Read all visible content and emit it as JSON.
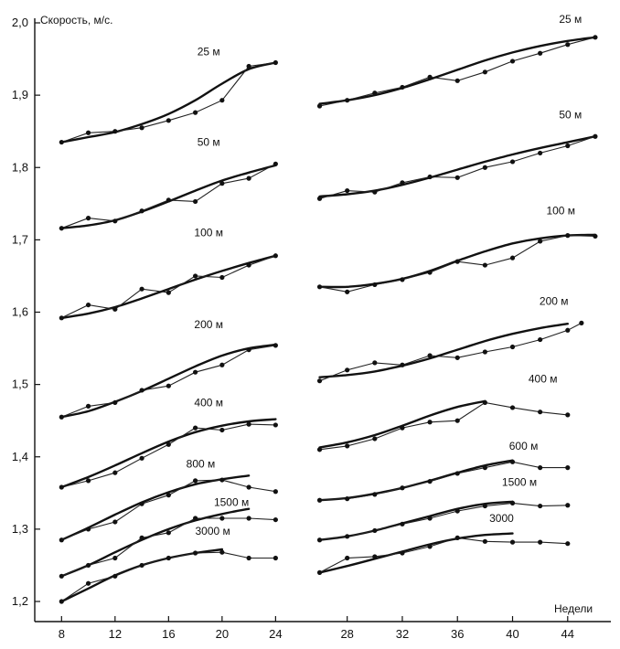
{
  "chart_data": {
    "type": "line",
    "ylabel": "Скорость, м/с.",
    "xlabel": "Недели",
    "ylim": [
      1.2,
      2.0
    ],
    "y_ticks": [
      {
        "value": 1.2,
        "label": "1,2"
      },
      {
        "value": 1.3,
        "label": "1,3"
      },
      {
        "value": 1.4,
        "label": "1,4"
      },
      {
        "value": 1.5,
        "label": "1,5"
      },
      {
        "value": 1.6,
        "label": "1,6"
      },
      {
        "value": 1.7,
        "label": "1,7"
      },
      {
        "value": 1.8,
        "label": "1,8"
      },
      {
        "value": 1.9,
        "label": "1,9"
      },
      {
        "value": 2.0,
        "label": "2,0"
      }
    ],
    "panels": [
      {
        "xlim": [
          7.5,
          25
        ],
        "x_ticks": [
          {
            "value": 8,
            "label": "8"
          },
          {
            "value": 12,
            "label": "12"
          },
          {
            "value": 16,
            "label": "16"
          },
          {
            "value": 20,
            "label": "20"
          },
          {
            "value": 24,
            "label": "24"
          }
        ],
        "series": [
          {
            "name": "25 м",
            "label_at": [
              19,
              1.955
            ],
            "x": [
              8,
              10,
              12,
              14,
              16,
              18,
              20,
              22,
              24
            ],
            "y": [
              1.835,
              1.848,
              1.85,
              1.855,
              1.865,
              1.876,
              1.893,
              1.94,
              1.945
            ],
            "trend": [
              1.835,
              1.842,
              1.849,
              1.86,
              1.874,
              1.893,
              1.916,
              1.936,
              1.945
            ]
          },
          {
            "name": "50 м",
            "label_at": [
              19,
              1.83
            ],
            "x": [
              8,
              10,
              12,
              14,
              16,
              18,
              20,
              22,
              24
            ],
            "y": [
              1.716,
              1.73,
              1.726,
              1.74,
              1.755,
              1.753,
              1.778,
              1.785,
              1.805
            ],
            "trend": [
              1.716,
              1.72,
              1.727,
              1.739,
              1.753,
              1.768,
              1.782,
              1.793,
              1.803
            ]
          },
          {
            "name": "100 м",
            "label_at": [
              19,
              1.705
            ],
            "x": [
              8,
              10,
              12,
              14,
              16,
              18,
              20,
              22,
              24
            ],
            "y": [
              1.592,
              1.61,
              1.604,
              1.632,
              1.627,
              1.65,
              1.648,
              1.665,
              1.678
            ],
            "trend": [
              1.592,
              1.598,
              1.607,
              1.619,
              1.632,
              1.645,
              1.657,
              1.668,
              1.678
            ]
          },
          {
            "name": "200 м",
            "label_at": [
              19,
              1.578
            ],
            "x": [
              8,
              10,
              12,
              14,
              16,
              18,
              20,
              22,
              24
            ],
            "y": [
              1.455,
              1.47,
              1.475,
              1.492,
              1.498,
              1.517,
              1.527,
              1.548,
              1.554
            ],
            "trend": [
              1.455,
              1.463,
              1.476,
              1.491,
              1.508,
              1.525,
              1.54,
              1.55,
              1.555
            ]
          },
          {
            "name": "400 м",
            "label_at": [
              19,
              1.47
            ],
            "x": [
              8,
              10,
              12,
              14,
              16,
              18,
              20,
              22,
              24
            ],
            "y": [
              1.358,
              1.367,
              1.378,
              1.398,
              1.417,
              1.44,
              1.437,
              1.445,
              1.444
            ],
            "trend": [
              1.358,
              1.372,
              1.388,
              1.405,
              1.421,
              1.434,
              1.443,
              1.449,
              1.452
            ]
          },
          {
            "name": "800 м",
            "label_at": [
              18.4,
              1.385
            ],
            "x": [
              8,
              10,
              12,
              14,
              16,
              18,
              20,
              22,
              24
            ],
            "y": [
              1.285,
              1.3,
              1.31,
              1.335,
              1.347,
              1.367,
              1.368,
              1.358,
              1.352
            ],
            "trend": [
              1.285,
              1.302,
              1.32,
              1.337,
              1.351,
              1.362,
              1.369,
              1.374,
              null
            ]
          },
          {
            "name": "1500 м",
            "label_at": [
              20.7,
              1.332
            ],
            "x": [
              8,
              10,
              12,
              14,
              16,
              18,
              20,
              22,
              24
            ],
            "y": [
              1.235,
              1.25,
              1.26,
              1.288,
              1.295,
              1.315,
              1.315,
              1.315,
              1.313
            ],
            "trend": [
              1.235,
              1.25,
              1.268,
              1.285,
              1.3,
              1.312,
              1.321,
              1.328,
              null
            ]
          },
          {
            "name": "3000 м",
            "label_at": [
              19.3,
              1.292
            ],
            "x": [
              8,
              10,
              12,
              14,
              16,
              18,
              20,
              22,
              24
            ],
            "y": [
              1.2,
              1.225,
              1.235,
              1.25,
              1.26,
              1.267,
              1.268,
              1.26,
              1.26
            ],
            "trend": [
              1.2,
              1.218,
              1.236,
              1.25,
              1.26,
              1.267,
              1.272,
              null,
              null
            ]
          }
        ]
      },
      {
        "xlim": [
          25.5,
          47
        ],
        "x_ticks": [
          {
            "value": 28,
            "label": "28"
          },
          {
            "value": 32,
            "label": "32"
          },
          {
            "value": 36,
            "label": "36"
          },
          {
            "value": 40,
            "label": "40"
          },
          {
            "value": 44,
            "label": "44"
          }
        ],
        "series": [
          {
            "name": "25 м",
            "label_at": [
              44.2,
              2.0
            ],
            "x": [
              26,
              28,
              30,
              32,
              34,
              36,
              38,
              40,
              42,
              44,
              46
            ],
            "y": [
              1.885,
              1.893,
              1.903,
              1.911,
              1.925,
              1.92,
              1.932,
              1.947,
              1.958,
              1.97,
              1.98
            ],
            "trend": [
              1.888,
              1.893,
              1.9,
              1.91,
              1.922,
              1.935,
              1.948,
              1.959,
              1.968,
              1.975,
              1.98
            ]
          },
          {
            "name": "50 м",
            "label_at": [
              44.2,
              1.868
            ],
            "x": [
              26,
              28,
              30,
              32,
              34,
              36,
              38,
              40,
              42,
              44,
              46
            ],
            "y": [
              1.757,
              1.768,
              1.766,
              1.779,
              1.787,
              1.786,
              1.8,
              1.808,
              1.82,
              1.83,
              1.843
            ],
            "trend": [
              1.76,
              1.763,
              1.768,
              1.776,
              1.786,
              1.797,
              1.808,
              1.818,
              1.827,
              1.835,
              1.843
            ]
          },
          {
            "name": "100 м",
            "label_at": [
              43.5,
              1.735
            ],
            "x": [
              26,
              28,
              30,
              32,
              34,
              36,
              38,
              40,
              42,
              44,
              46
            ],
            "y": [
              1.635,
              1.628,
              1.638,
              1.645,
              1.655,
              1.67,
              1.665,
              1.675,
              1.698,
              1.706,
              1.705
            ],
            "trend": [
              1.635,
              1.635,
              1.639,
              1.646,
              1.657,
              1.671,
              1.684,
              1.695,
              1.702,
              1.706,
              1.707
            ]
          },
          {
            "name": "200 м",
            "label_at": [
              43,
              1.61
            ],
            "x": [
              26,
              28,
              30,
              32,
              34,
              36,
              38,
              40,
              42,
              44,
              45
            ],
            "y": [
              1.505,
              1.52,
              1.53,
              1.527,
              1.54,
              1.537,
              1.545,
              1.552,
              1.562,
              1.575,
              1.585
            ],
            "trend": [
              1.51,
              1.513,
              1.518,
              1.526,
              1.536,
              1.548,
              1.56,
              1.57,
              1.578,
              1.584,
              null
            ]
          },
          {
            "name": "400 м",
            "label_at": [
              42.2,
              1.503
            ],
            "x": [
              26,
              28,
              30,
              32,
              34,
              36,
              38,
              40,
              42,
              44
            ],
            "y": [
              1.41,
              1.415,
              1.425,
              1.44,
              1.448,
              1.45,
              1.475,
              1.468,
              1.462,
              1.458
            ],
            "trend": [
              1.413,
              1.42,
              1.43,
              1.443,
              1.457,
              1.469,
              1.477,
              null,
              null,
              null
            ]
          },
          {
            "name": "600 м",
            "label_at": [
              40.8,
              1.41
            ],
            "x": [
              26,
              28,
              30,
              32,
              34,
              36,
              38,
              40,
              42,
              44
            ],
            "y": [
              1.34,
              1.342,
              1.348,
              1.357,
              1.366,
              1.377,
              1.385,
              1.393,
              1.385,
              1.385
            ],
            "trend": [
              1.34,
              1.343,
              1.349,
              1.357,
              1.367,
              1.378,
              1.388,
              1.395,
              null,
              null
            ]
          },
          {
            "name": "1500 м",
            "label_at": [
              40.5,
              1.36
            ],
            "x": [
              26,
              28,
              30,
              32,
              34,
              36,
              38,
              40,
              42,
              44
            ],
            "y": [
              1.285,
              1.29,
              1.298,
              1.307,
              1.315,
              1.325,
              1.332,
              1.336,
              1.332,
              1.333
            ],
            "trend": [
              1.285,
              1.29,
              1.298,
              1.308,
              1.318,
              1.328,
              1.335,
              1.338,
              null,
              null
            ]
          },
          {
            "name": "3000",
            "label_at": [
              39.2,
              1.31
            ],
            "x": [
              26,
              28,
              30,
              32,
              34,
              36,
              38,
              40,
              42,
              44
            ],
            "y": [
              1.24,
              1.26,
              1.262,
              1.267,
              1.276,
              1.288,
              1.283,
              1.282,
              1.282,
              1.28
            ],
            "trend": [
              1.24,
              1.249,
              1.259,
              1.269,
              1.279,
              1.287,
              1.292,
              1.294,
              null,
              null
            ]
          }
        ]
      }
    ]
  }
}
